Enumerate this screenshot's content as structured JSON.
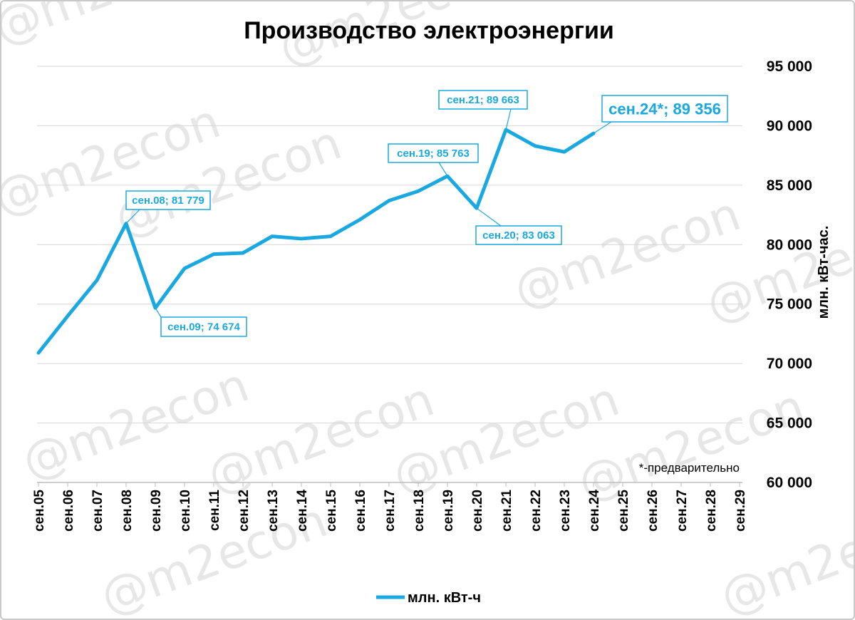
{
  "chart_data": {
    "type": "line",
    "title": "Производство электроэнергии",
    "ylabel": "млн. кВт-час.",
    "y_axis_position": "right",
    "ylim": [
      60000,
      95000
    ],
    "yticks": [
      60000,
      65000,
      70000,
      75000,
      80000,
      85000,
      90000,
      95000
    ],
    "ytick_labels": [
      "60 000",
      "65 000",
      "70 000",
      "75 000",
      "80 000",
      "85 000",
      "90 000",
      "95 000"
    ],
    "categories": [
      "сен.05",
      "сен.06",
      "сен.07",
      "сен.08",
      "сен.09",
      "сен.10",
      "сен.11",
      "сен.12",
      "сен.13",
      "сен.14",
      "сен.15",
      "сен.16",
      "сен.17",
      "сен.18",
      "сен.19",
      "сен.20",
      "сен.21",
      "сен.22",
      "сен.23",
      "сен.24",
      "сен.25",
      "сен.26",
      "сен.27",
      "сен.28",
      "сен.29"
    ],
    "series": [
      {
        "name": "млн. кВт-ч",
        "color": "#1aa8e0",
        "values": [
          70900,
          74000,
          77000,
          81779,
          74674,
          78000,
          79200,
          79300,
          80700,
          80500,
          80700,
          82100,
          83700,
          84500,
          85763,
          83063,
          89663,
          88300,
          87800,
          89356,
          null,
          null,
          null,
          null,
          null
        ]
      }
    ],
    "annotations": [
      {
        "text": "сен.08; 81 779",
        "category": "сен.08",
        "style": "normal"
      },
      {
        "text": "сен.09; 74 674",
        "category": "сен.09",
        "style": "normal"
      },
      {
        "text": "сен.19; 85 763",
        "category": "сен.19",
        "style": "normal"
      },
      {
        "text": "сен.20; 83 063",
        "category": "сен.20",
        "style": "normal"
      },
      {
        "text": "сен.21; 89 663",
        "category": "сен.21",
        "style": "normal"
      },
      {
        "text": "сен.24*; 89 356",
        "category": "сен.24",
        "style": "big"
      }
    ],
    "note": "*-предварительно",
    "legend_position": "bottom",
    "grid": true,
    "watermark": "@m2econ"
  }
}
